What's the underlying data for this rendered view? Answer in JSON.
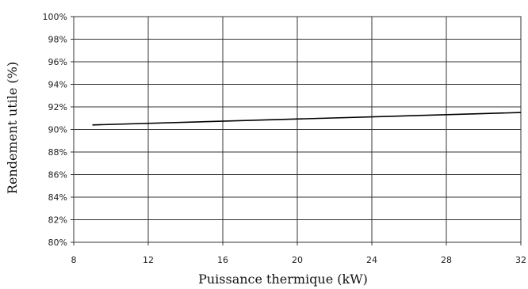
{
  "chart_data": {
    "type": "line",
    "title": "",
    "xlabel": "Puissance thermique (kW)",
    "ylabel": "Rendement utile (%)",
    "xlim": [
      8,
      32
    ],
    "ylim": [
      80,
      100
    ],
    "xticks": [
      8,
      12,
      16,
      20,
      24,
      28,
      32
    ],
    "xtick_labels": [
      "8",
      "12",
      "16",
      "20",
      "24",
      "28",
      "32"
    ],
    "yticks": [
      80,
      82,
      84,
      86,
      88,
      90,
      92,
      94,
      96,
      98,
      100
    ],
    "ytick_labels": [
      "80%",
      "82%",
      "84%",
      "86%",
      "88%",
      "90%",
      "92%",
      "94%",
      "96%",
      "98%",
      "100%"
    ],
    "grid": true,
    "series": [
      {
        "x": [
          9,
          32
        ],
        "y": [
          90.4,
          91.5
        ]
      }
    ],
    "colors": {
      "line": "#000000",
      "grid": "#333333",
      "background": "#ffffff"
    }
  }
}
